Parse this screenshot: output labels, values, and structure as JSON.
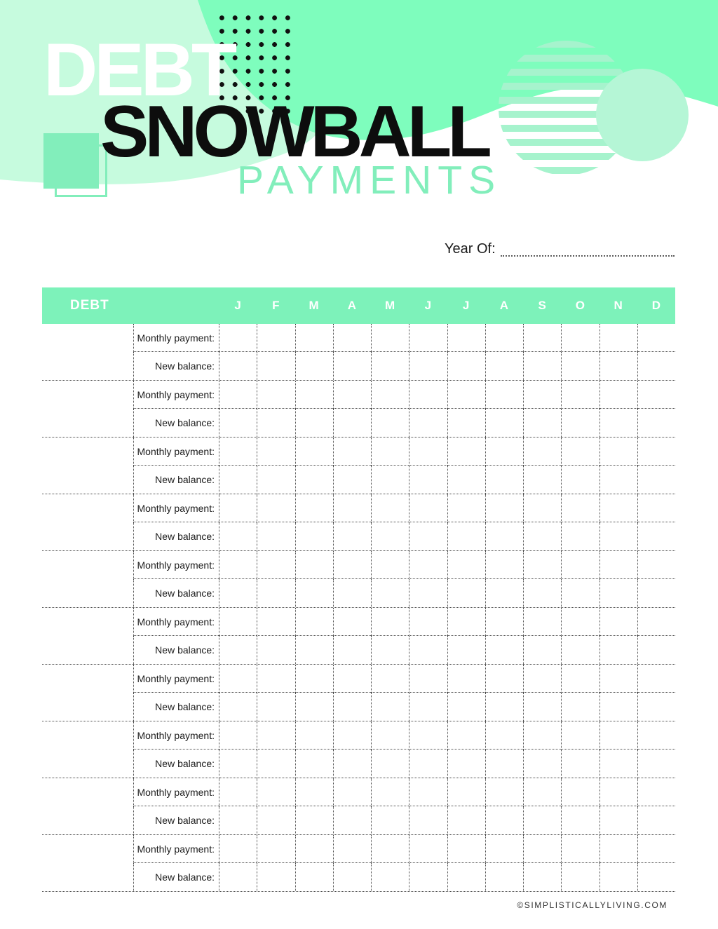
{
  "header": {
    "title_word1": "DEBT",
    "title_word2": "SNOWBALL",
    "title_word3": "PAYMENTS"
  },
  "year_section": {
    "label": "Year Of:",
    "value": ""
  },
  "table": {
    "debt_column_header": "DEBT",
    "month_headers": [
      "J",
      "F",
      "M",
      "A",
      "M",
      "J",
      "J",
      "A",
      "S",
      "O",
      "N",
      "D"
    ],
    "debt_row_count": 10,
    "row_labels": {
      "monthly_payment": "Monthly payment:",
      "new_balance": "New balance:"
    }
  },
  "footer": {
    "credit": "©SIMPLISTICALLYLIVING.COM"
  },
  "colors": {
    "mint-dark": "#7efdbd",
    "mint-light": "#c6fbde",
    "mint-mid": "#82eebb",
    "mint-stripe": "#a6f3cd",
    "mint-circle": "#b5f6d6",
    "table-header": "#7df2ba",
    "dot-black": "#101010",
    "line-gray": "#4a4a4a",
    "text-dark": "#1b1b1b"
  }
}
